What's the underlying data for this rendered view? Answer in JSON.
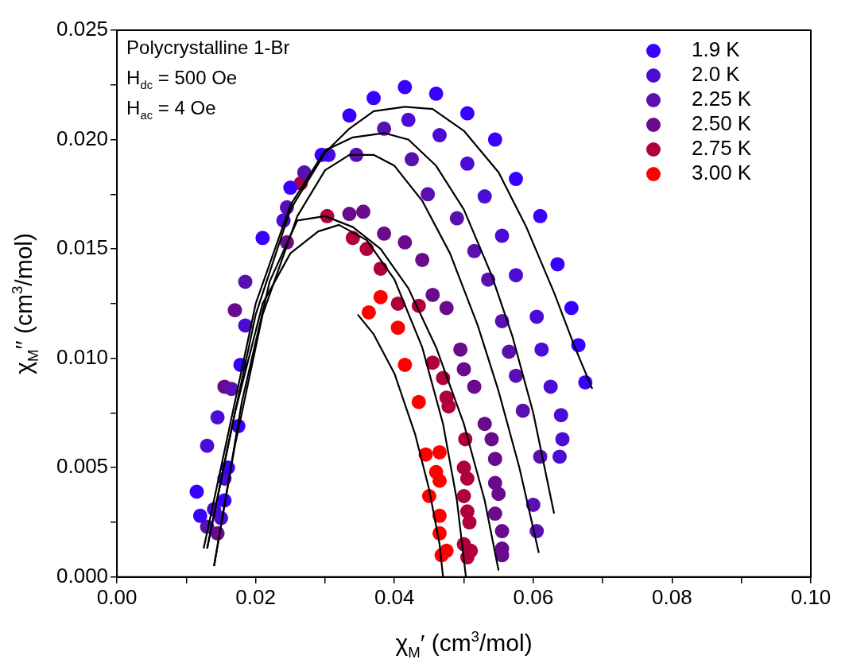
{
  "chart_data": {
    "type": "scatter",
    "xlabel": "χ$_{M}$′ (cm$^{3}$/mol)",
    "ylabel": "χ$_{M}$′′ (cm$^{3}$/mol)",
    "annotations": [
      "Polycrystalline 1-Br",
      "H$_{dc}$ = 500 Oe",
      "H$_{ac}$ = 4 Oe"
    ],
    "xlim": [
      0,
      0.1
    ],
    "ylim": [
      0,
      0.025
    ],
    "xticks": [
      {
        "value": 0,
        "label": "0.00"
      },
      {
        "value": 0.01,
        "label": null
      },
      {
        "value": 0.02,
        "label": "0.02"
      },
      {
        "value": 0.03,
        "label": null
      },
      {
        "value": 0.04,
        "label": "0.04"
      },
      {
        "value": 0.05,
        "label": null
      },
      {
        "value": 0.06,
        "label": "0.06"
      },
      {
        "value": 0.07,
        "label": null
      },
      {
        "value": 0.08,
        "label": "0.08"
      },
      {
        "value": 0.09,
        "label": null
      },
      {
        "value": 0.1,
        "label": "0.10"
      }
    ],
    "yticks": [
      {
        "value": 0,
        "label": "0.000"
      },
      {
        "value": 0.0025,
        "label": null
      },
      {
        "value": 0.005,
        "label": "0.005"
      },
      {
        "value": 0.0075,
        "label": null
      },
      {
        "value": 0.01,
        "label": "0.010"
      },
      {
        "value": 0.0125,
        "label": null
      },
      {
        "value": 0.015,
        "label": "0.015"
      },
      {
        "value": 0.0175,
        "label": null
      },
      {
        "value": 0.02,
        "label": "0.020"
      },
      {
        "value": 0.0225,
        "label": null
      },
      {
        "value": 0.025,
        "label": "0.025"
      }
    ],
    "grid": false,
    "legend": "top right",
    "marker": "circle",
    "series": [
      {
        "name": "1.9 K",
        "color": "#3a00ff",
        "x": [
          0.0115,
          0.012,
          0.0155,
          0.016,
          0.0175,
          0.0178,
          0.021,
          0.025,
          0.0295,
          0.0335,
          0.037,
          0.0415,
          0.046,
          0.0505,
          0.0545,
          0.0575,
          0.061,
          0.0635,
          0.0655,
          0.0665,
          0.0675
        ],
        "values": [
          0.0039,
          0.0028,
          0.0035,
          0.005,
          0.0069,
          0.0097,
          0.0155,
          0.0178,
          0.0193,
          0.0211,
          0.0219,
          0.0224,
          0.0221,
          0.0212,
          0.02,
          0.0182,
          0.0165,
          0.0143,
          0.0123,
          0.0106,
          0.0089
        ]
      },
      {
        "name": "2.0 K",
        "color": "#4b0cd6",
        "x": [
          0.014,
          0.015,
          0.0155,
          0.013,
          0.0145,
          0.0185,
          0.024,
          0.0305,
          0.042,
          0.0465,
          0.0505,
          0.053,
          0.0555,
          0.0575,
          0.0605,
          0.0612,
          0.0625,
          0.064,
          0.0642,
          0.0638
        ],
        "values": [
          0.0031,
          0.0027,
          0.0045,
          0.006,
          0.0073,
          0.0115,
          0.0163,
          0.0193,
          0.0209,
          0.0202,
          0.0189,
          0.0174,
          0.0156,
          0.0138,
          0.0119,
          0.0104,
          0.0087,
          0.0074,
          0.0063,
          0.0055
        ]
      },
      {
        "name": "2.25 K",
        "color": "#5a10b0",
        "x": [
          0.013,
          0.0165,
          0.0185,
          0.0245,
          0.027,
          0.0345,
          0.0385,
          0.0425,
          0.0448,
          0.049,
          0.0515,
          0.0535,
          0.0555,
          0.0565,
          0.0575,
          0.0585,
          0.061,
          0.06,
          0.0605
        ],
        "values": [
          0.0023,
          0.0086,
          0.0135,
          0.0169,
          0.0185,
          0.0193,
          0.0205,
          0.0191,
          0.0175,
          0.0164,
          0.0149,
          0.0136,
          0.0117,
          0.0103,
          0.0092,
          0.0076,
          0.0055,
          0.0033,
          0.0021
        ]
      },
      {
        "name": "2.50 K",
        "color": "#6a0a8c",
        "x": [
          0.0145,
          0.0155,
          0.017,
          0.0245,
          0.0335,
          0.0355,
          0.0385,
          0.0415,
          0.044,
          0.0455,
          0.0475,
          0.0495,
          0.05,
          0.0515,
          0.053,
          0.054,
          0.0545,
          0.0545,
          0.055,
          0.0545,
          0.0555,
          0.0555,
          0.0555
        ],
        "values": [
          0.002,
          0.0087,
          0.0122,
          0.0153,
          0.0166,
          0.0167,
          0.0157,
          0.0153,
          0.0145,
          0.0129,
          0.0123,
          0.0104,
          0.0095,
          0.0087,
          0.007,
          0.0063,
          0.0054,
          0.0043,
          0.0038,
          0.0029,
          0.0021,
          0.0013,
          0.001
        ]
      },
      {
        "name": "2.75 K",
        "color": "#b0003e",
        "x": [
          0.0265,
          0.0303,
          0.034,
          0.036,
          0.038,
          0.0405,
          0.0435,
          0.0455,
          0.047,
          0.0475,
          0.0478,
          0.0502,
          0.05,
          0.0505,
          0.05,
          0.0505,
          0.0508,
          0.05,
          0.051,
          0.0505
        ],
        "values": [
          0.018,
          0.0165,
          0.0155,
          0.015,
          0.0141,
          0.0125,
          0.0124,
          0.0098,
          0.0091,
          0.0082,
          0.0078,
          0.0063,
          0.005,
          0.0045,
          0.0037,
          0.003,
          0.0025,
          0.0015,
          0.0012,
          0.0009
        ]
      },
      {
        "name": "3.00 K",
        "color": "#ff0000",
        "x": [
          0.0363,
          0.038,
          0.0405,
          0.0415,
          0.0435,
          0.0445,
          0.0465,
          0.046,
          0.045,
          0.0465,
          0.0465,
          0.0465,
          0.0475,
          0.0468
        ],
        "values": [
          0.0121,
          0.0128,
          0.0114,
          0.0097,
          0.008,
          0.0056,
          0.0057,
          0.0048,
          0.0037,
          0.0044,
          0.0028,
          0.002,
          0.0012,
          0.001
        ]
      },
      {
        "type": "line",
        "marker": "none",
        "color": "#000000",
        "x": [
          0.013,
          0.016,
          0.02,
          0.025,
          0.03,
          0.0335,
          0.037,
          0.0415,
          0.0455,
          0.05,
          0.055,
          0.059,
          0.063,
          0.066,
          0.0685
        ],
        "values": [
          0.0013,
          0.006,
          0.012,
          0.0168,
          0.0194,
          0.0205,
          0.0213,
          0.0215,
          0.0214,
          0.0204,
          0.0185,
          0.016,
          0.013,
          0.0105,
          0.0086
        ]
      },
      {
        "type": "line",
        "marker": "none",
        "color": "#000000",
        "x": [
          0.0125,
          0.016,
          0.02,
          0.025,
          0.03,
          0.034,
          0.0385,
          0.042,
          0.046,
          0.05,
          0.054,
          0.057,
          0.06,
          0.063
        ],
        "values": [
          0.0013,
          0.0065,
          0.0125,
          0.017,
          0.0195,
          0.0201,
          0.0203,
          0.02,
          0.0188,
          0.0168,
          0.0138,
          0.011,
          0.0075,
          0.0029
        ]
      },
      {
        "type": "line",
        "marker": "none",
        "color": "#000000",
        "x": [
          0.014,
          0.017,
          0.021,
          0.026,
          0.03,
          0.0335,
          0.037,
          0.04,
          0.044,
          0.048,
          0.052,
          0.055,
          0.058,
          0.0608
        ],
        "values": [
          0.0005,
          0.006,
          0.012,
          0.0165,
          0.0186,
          0.0193,
          0.0193,
          0.0188,
          0.0172,
          0.0148,
          0.0115,
          0.0085,
          0.005,
          0.0011
        ]
      },
      {
        "type": "line",
        "marker": "none",
        "color": "#000000",
        "x": [
          0.014,
          0.018,
          0.022,
          0.026,
          0.03,
          0.034,
          0.038,
          0.042,
          0.046,
          0.05,
          0.053,
          0.055
        ],
        "values": [
          0.0005,
          0.008,
          0.0135,
          0.0163,
          0.0165,
          0.016,
          0.015,
          0.0132,
          0.0105,
          0.007,
          0.0035,
          0.0003
        ]
      },
      {
        "type": "line",
        "marker": "none",
        "color": "#000000",
        "x": [
          0.013,
          0.017,
          0.021,
          0.025,
          0.029,
          0.032,
          0.036,
          0.04,
          0.044,
          0.047,
          0.049,
          0.0503
        ],
        "values": [
          0.0013,
          0.0075,
          0.0125,
          0.0148,
          0.0158,
          0.0161,
          0.0154,
          0.0136,
          0.0105,
          0.007,
          0.0035,
          0
        ]
      },
      {
        "type": "line",
        "marker": "none",
        "color": "#000000",
        "x": [
          0.0347,
          0.037,
          0.04,
          0.043,
          0.045,
          0.0465,
          0.047
        ],
        "values": [
          0.012,
          0.0111,
          0.0093,
          0.0065,
          0.004,
          0.0015,
          0
        ]
      }
    ]
  }
}
